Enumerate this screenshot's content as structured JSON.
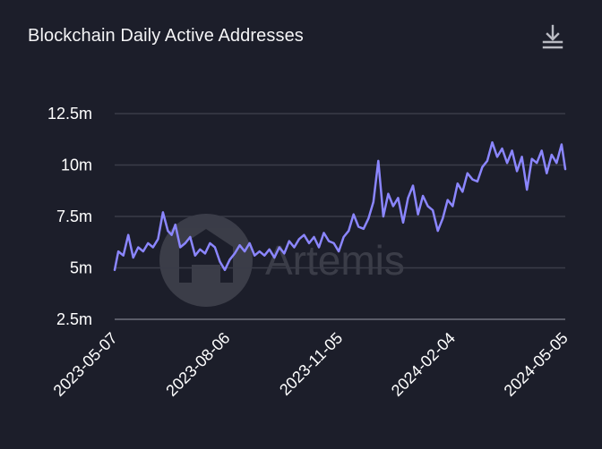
{
  "header": {
    "title": "Blockchain Daily Active Addresses",
    "download_icon": "download-icon"
  },
  "watermark": {
    "text": "Artemis",
    "icon": "artemis-logo-icon"
  },
  "colors": {
    "background": "#1c1e2a",
    "line": "#8b86ff",
    "grid": "#3a3c48",
    "text": "#ffffff"
  },
  "chart_data": {
    "type": "line",
    "title": "Blockchain Daily Active Addresses",
    "xlabel": "",
    "ylabel": "",
    "y_ticks": [
      {
        "value": 2.5,
        "label": "2.5m"
      },
      {
        "value": 5,
        "label": "5m"
      },
      {
        "value": 7.5,
        "label": "7.5m"
      },
      {
        "value": 10,
        "label": "10m"
      },
      {
        "value": 12.5,
        "label": "12.5m"
      }
    ],
    "x_ticks": [
      "2023-05-07",
      "2023-08-06",
      "2023-11-05",
      "2024-02-04",
      "2024-05-05"
    ],
    "ylim": [
      2.5,
      12.5
    ],
    "xlim": [
      "2023-05-07",
      "2024-05-05"
    ],
    "y_unit": "millions",
    "grid": true,
    "legend": "none",
    "series": [
      {
        "x": [
          "2023-05-07",
          "2023-05-10",
          "2023-05-14",
          "2023-05-18",
          "2023-05-22",
          "2023-05-26",
          "2023-05-30",
          "2023-06-03",
          "2023-06-07",
          "2023-06-11",
          "2023-06-15",
          "2023-06-19",
          "2023-06-22",
          "2023-06-25",
          "2023-06-29",
          "2023-07-03",
          "2023-07-07",
          "2023-07-11",
          "2023-07-15",
          "2023-07-19",
          "2023-07-23",
          "2023-07-27",
          "2023-07-31",
          "2023-08-04",
          "2023-08-08",
          "2023-08-12",
          "2023-08-16",
          "2023-08-20",
          "2023-08-24",
          "2023-08-28",
          "2023-09-01",
          "2023-09-05",
          "2023-09-09",
          "2023-09-13",
          "2023-09-17",
          "2023-09-21",
          "2023-09-25",
          "2023-09-29",
          "2023-10-03",
          "2023-10-07",
          "2023-10-11",
          "2023-10-15",
          "2023-10-19",
          "2023-10-23",
          "2023-10-27",
          "2023-10-31",
          "2023-11-04",
          "2023-11-08",
          "2023-11-12",
          "2023-11-16",
          "2023-11-20",
          "2023-11-24",
          "2023-11-28",
          "2023-12-02",
          "2023-12-06",
          "2023-12-10",
          "2023-12-14",
          "2023-12-18",
          "2023-12-22",
          "2023-12-26",
          "2023-12-30",
          "2024-01-03",
          "2024-01-07",
          "2024-01-11",
          "2024-01-15",
          "2024-01-19",
          "2024-01-23",
          "2024-01-27",
          "2024-01-31",
          "2024-02-04",
          "2024-02-08",
          "2024-02-12",
          "2024-02-16",
          "2024-02-20",
          "2024-02-24",
          "2024-02-28",
          "2024-03-03",
          "2024-03-07",
          "2024-03-11",
          "2024-03-15",
          "2024-03-19",
          "2024-03-23",
          "2024-03-27",
          "2024-03-31",
          "2024-04-04",
          "2024-04-08",
          "2024-04-12",
          "2024-04-16",
          "2024-04-20",
          "2024-04-24",
          "2024-04-28",
          "2024-05-02",
          "2024-05-05"
        ],
        "values": [
          4.9,
          5.8,
          5.6,
          6.6,
          5.5,
          6.0,
          5.8,
          6.2,
          6.0,
          6.4,
          7.7,
          6.8,
          6.6,
          7.1,
          6.0,
          6.2,
          6.5,
          5.6,
          5.9,
          5.7,
          6.2,
          6.0,
          5.3,
          4.9,
          5.4,
          5.7,
          6.1,
          5.8,
          6.2,
          5.6,
          5.8,
          5.6,
          5.9,
          5.5,
          6.0,
          5.7,
          6.3,
          6.0,
          6.4,
          6.6,
          6.2,
          6.5,
          6.0,
          6.7,
          6.3,
          6.2,
          5.8,
          6.5,
          6.8,
          7.6,
          7.0,
          6.9,
          7.4,
          8.2,
          10.2,
          7.5,
          8.6,
          8.0,
          8.4,
          7.2,
          8.4,
          9.0,
          7.6,
          8.5,
          8.0,
          7.8,
          6.8,
          7.4,
          8.3,
          8.0,
          9.1,
          8.7,
          9.6,
          9.3,
          9.2,
          9.9,
          10.2,
          11.1,
          10.4,
          10.8,
          10.1,
          10.7,
          9.7,
          10.4,
          8.8,
          10.3,
          10.1,
          10.7,
          9.6,
          10.5,
          10.1,
          11.0,
          9.8
        ]
      }
    ]
  }
}
